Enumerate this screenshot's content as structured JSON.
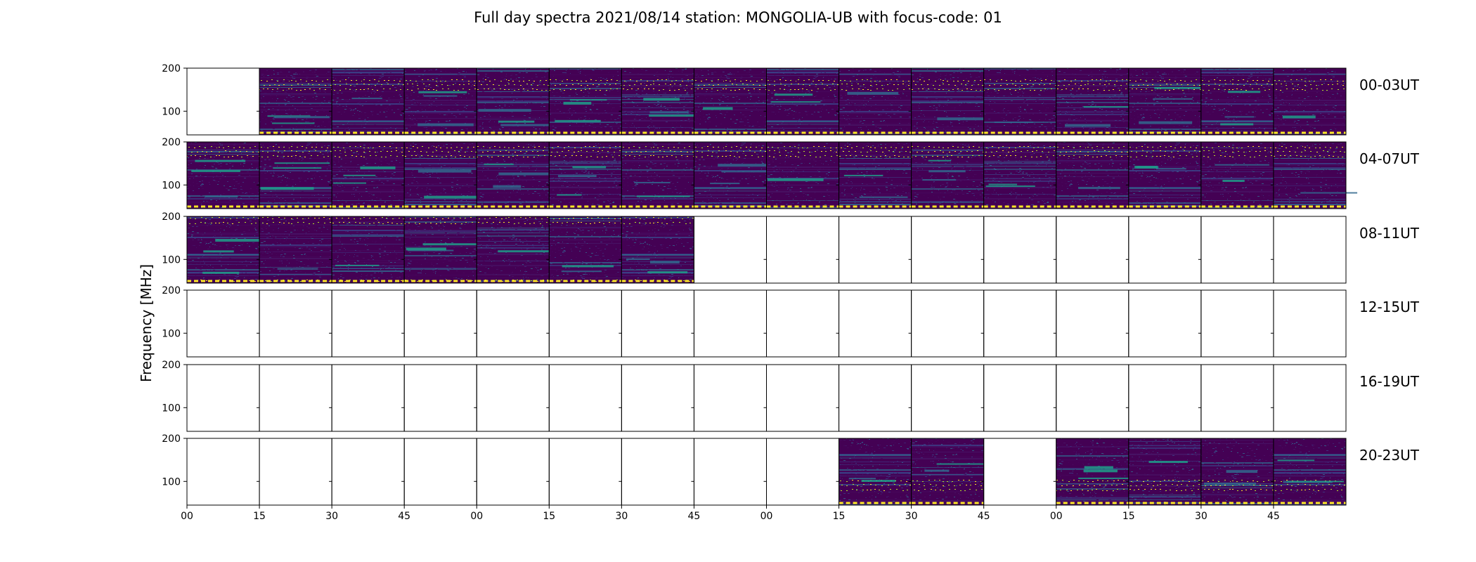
{
  "chart_data": {
    "type": "heatmap",
    "title": "Full day spectra 2021/08/14 station: MONGOLIA-UB with focus-code: 01",
    "ylabel": "Frequency [MHz]",
    "xlabel": "",
    "y_ticks": [
      "200",
      "100"
    ],
    "ylim": [
      45,
      200
    ],
    "x_ticks": [
      "00",
      "15",
      "30",
      "45",
      "00",
      "15",
      "30",
      "45",
      "00",
      "15",
      "30",
      "45",
      "00",
      "15",
      "30",
      "45"
    ],
    "colormap": "viridis",
    "colors": {
      "low": "#440154",
      "mid": "#31688e",
      "high": "#35b779",
      "max": "#fde725"
    },
    "rows": [
      {
        "label": "00-03UT",
        "has_data": [
          false,
          true,
          true,
          true,
          true,
          true,
          true,
          true,
          true,
          true,
          true,
          true,
          true,
          true,
          true,
          true
        ]
      },
      {
        "label": "04-07UT",
        "has_data": [
          true,
          true,
          true,
          true,
          true,
          true,
          true,
          true,
          true,
          true,
          true,
          true,
          true,
          true,
          true,
          true
        ]
      },
      {
        "label": "08-11UT",
        "has_data": [
          true,
          true,
          true,
          true,
          true,
          true,
          true,
          false,
          false,
          false,
          false,
          false,
          false,
          false,
          false,
          false
        ]
      },
      {
        "label": "12-15UT",
        "has_data": [
          false,
          false,
          false,
          false,
          false,
          false,
          false,
          false,
          false,
          false,
          false,
          false,
          false,
          false,
          false,
          false
        ]
      },
      {
        "label": "16-19UT",
        "has_data": [
          false,
          false,
          false,
          false,
          false,
          false,
          false,
          false,
          false,
          false,
          false,
          false,
          false,
          false,
          false,
          false
        ]
      },
      {
        "label": "20-23UT",
        "has_data": [
          false,
          false,
          false,
          false,
          false,
          false,
          false,
          false,
          false,
          true,
          true,
          false,
          true,
          true,
          true,
          true
        ]
      }
    ]
  }
}
